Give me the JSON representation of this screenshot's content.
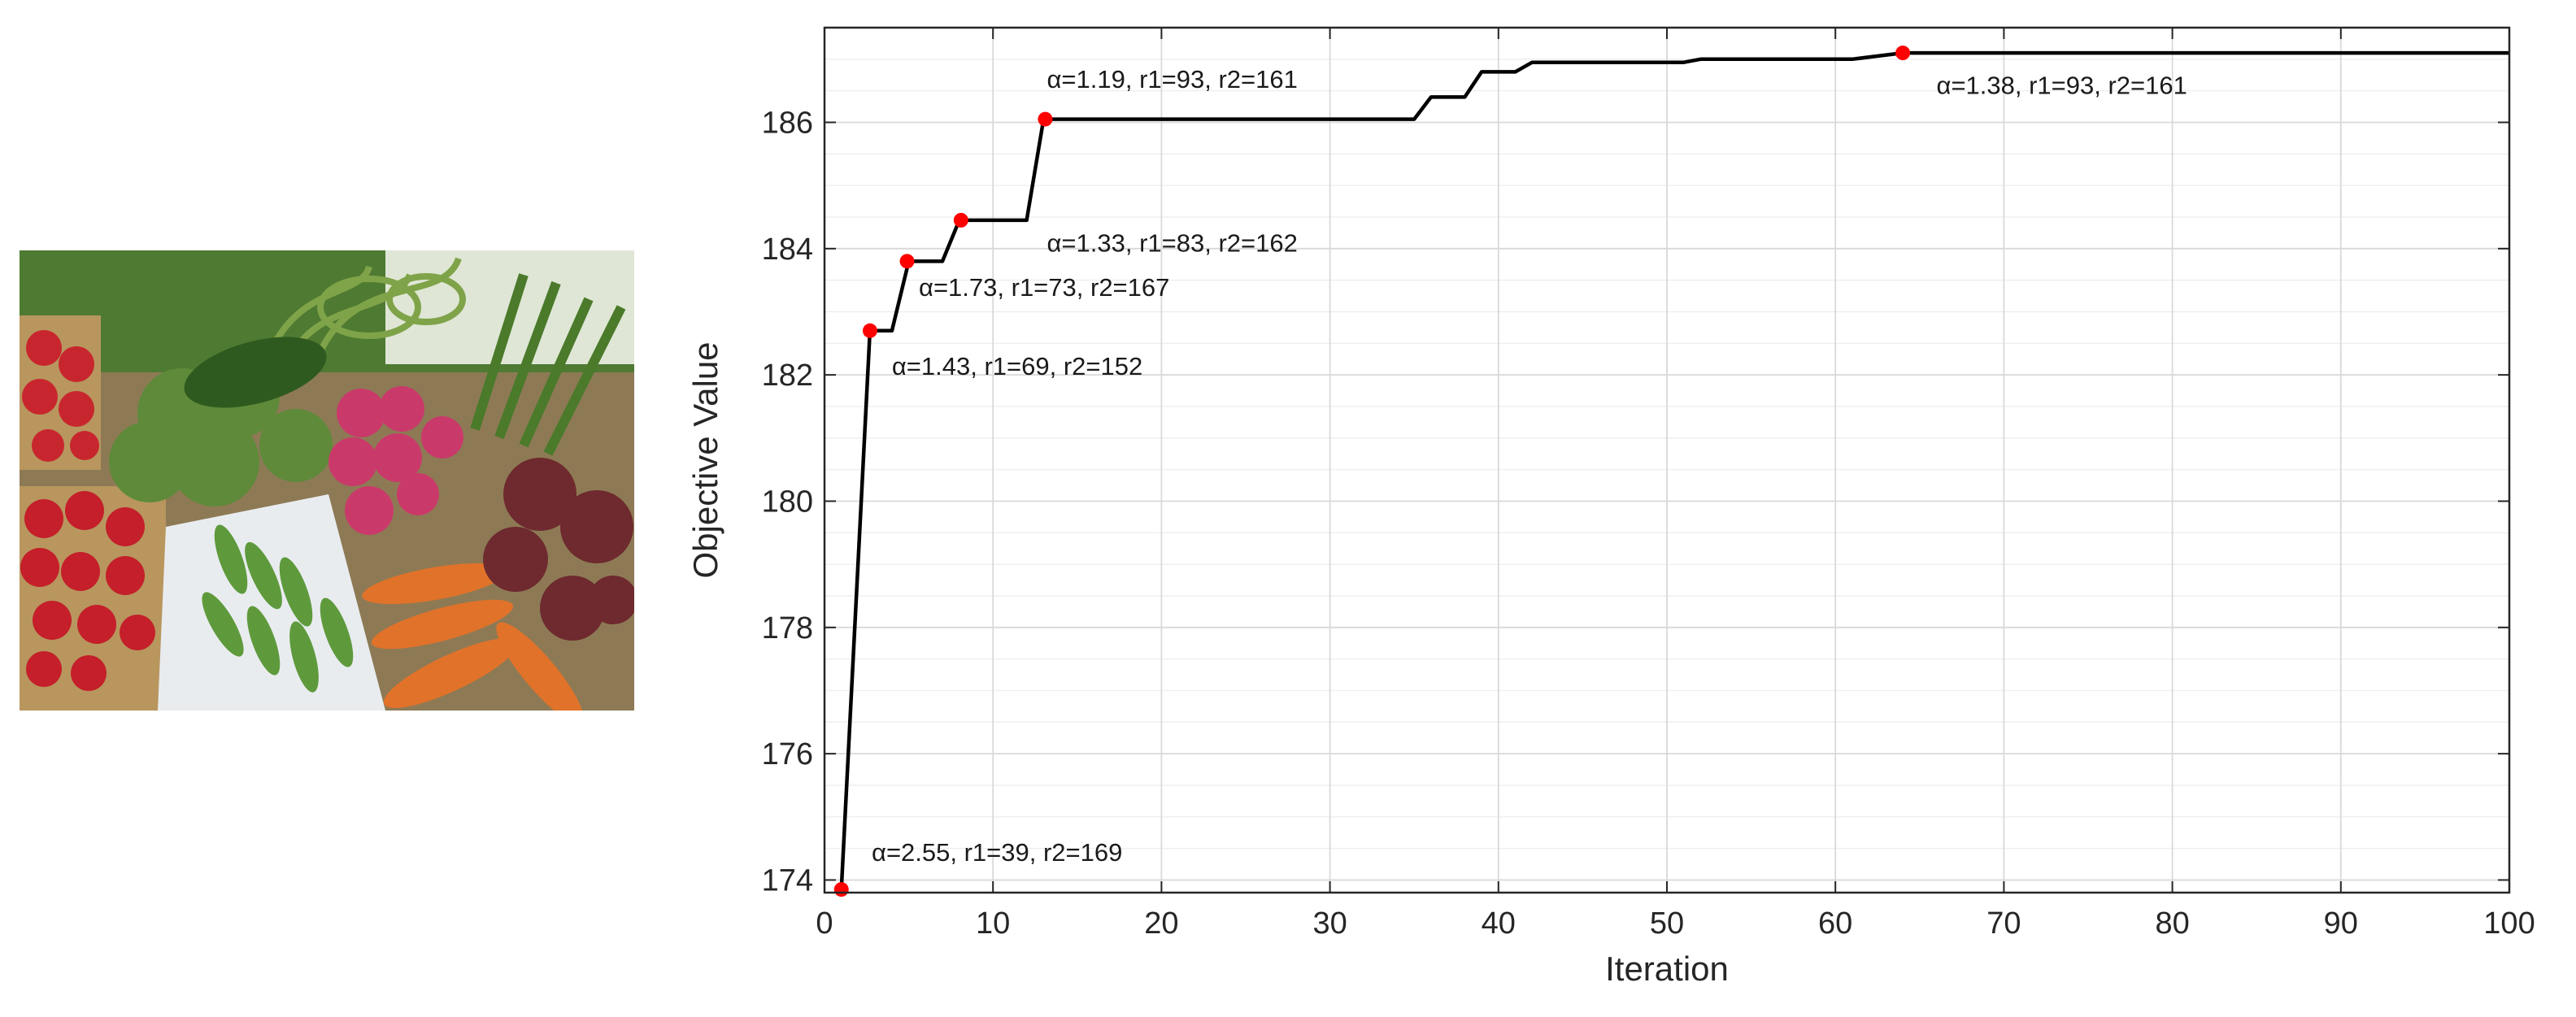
{
  "photo": {
    "icon": "vegetables-photo",
    "subjects": [
      "strawberries",
      "broccoli",
      "cucumber",
      "garlic scapes",
      "asparagus",
      "radishes",
      "peas",
      "carrots",
      "beets"
    ]
  },
  "colors": {
    "line": "#000000",
    "marker": "#ff0000",
    "grid_major": "#d9d9d9",
    "grid_minor": "#efefef",
    "axes": "#262626"
  },
  "chart_data": {
    "type": "line",
    "title": "",
    "xlabel": "Iteration",
    "ylabel": "Objective Value",
    "xlim": [
      0,
      100
    ],
    "ylim": [
      173.8,
      187.5
    ],
    "xticks": [
      0,
      10,
      20,
      30,
      40,
      50,
      60,
      70,
      80,
      90,
      100
    ],
    "yticks": [
      174,
      176,
      178,
      180,
      182,
      184,
      186
    ],
    "grid": true,
    "minor_grid": true,
    "legend": "none",
    "series": [
      {
        "x": [
          1,
          2.7,
          3,
          4,
          5,
          7,
          8,
          12,
          13,
          35,
          36,
          38,
          39,
          41,
          42,
          45,
          51,
          52,
          55,
          61,
          64,
          100
        ],
        "y": [
          173.85,
          182.7,
          182.7,
          182.7,
          183.8,
          183.8,
          184.45,
          184.45,
          186.05,
          186.05,
          186.4,
          186.4,
          186.8,
          186.8,
          186.95,
          186.95,
          186.95,
          187.0,
          187.0,
          187.0,
          187.1,
          187.1
        ]
      }
    ],
    "markers": [
      {
        "x": 1,
        "y": 173.85
      },
      {
        "x": 2.7,
        "y": 182.7
      },
      {
        "x": 4.9,
        "y": 183.8
      },
      {
        "x": 8.1,
        "y": 184.45
      },
      {
        "x": 13.1,
        "y": 186.05
      },
      {
        "x": 64,
        "y": 187.1
      }
    ],
    "annotations": [
      {
        "text": "α=2.55, r1=39, r2=169",
        "x": 2.8,
        "y": 174.3
      },
      {
        "text": "α=1.43, r1=69, r2=152",
        "x": 4.0,
        "y": 182.0
      },
      {
        "text": "α=1.73, r1=73, r2=167",
        "x": 5.6,
        "y": 183.25
      },
      {
        "text": "α=1.33, r1=83, r2=162",
        "x": 13.2,
        "y": 183.95
      },
      {
        "text": "α=1.19, r1=93, r2=161",
        "x": 13.2,
        "y": 186.55
      },
      {
        "text": "α=1.38, r1=93, r2=161",
        "x": 66,
        "y": 186.45
      }
    ]
  }
}
